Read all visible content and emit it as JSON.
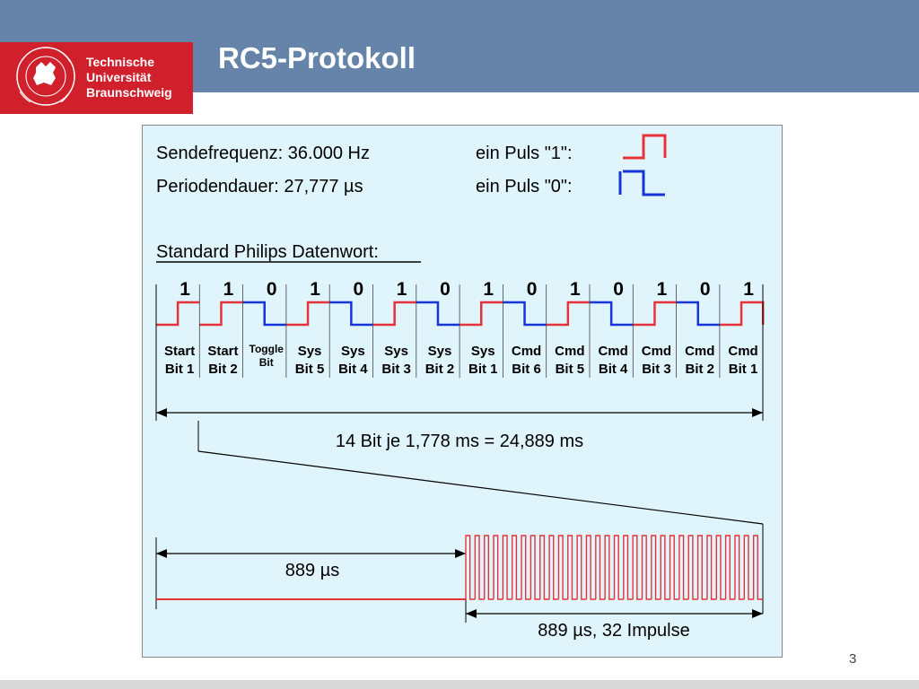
{
  "slide": {
    "title": "RC5-Protokoll",
    "page_number": "3"
  },
  "logo": {
    "line1": "Technische",
    "line2": "Universität",
    "line3": "Braunschweig",
    "seal_text": "CAROLO-WILHELMINA BRAUNSCHWEIG"
  },
  "diagram": {
    "send_frequency": "Sendefrequenz: 36.000 Hz",
    "period": "Periodendauer: 27,777 µs",
    "pulse_one_label": "ein Puls \"1\":",
    "pulse_zero_label": "ein Puls \"0\":",
    "dataword_heading": "Standard Philips Datenwort:",
    "bits": [
      "1",
      "1",
      "0",
      "1",
      "0",
      "1",
      "0",
      "1",
      "0",
      "1",
      "0",
      "1",
      "0",
      "1"
    ],
    "bit_labels": [
      [
        "Start",
        "Bit 1"
      ],
      [
        "Start",
        "Bit 2"
      ],
      [
        "Toggle",
        "Bit"
      ],
      [
        "Sys",
        "Bit 5"
      ],
      [
        "Sys",
        "Bit 4"
      ],
      [
        "Sys",
        "Bit 3"
      ],
      [
        "Sys",
        "Bit 2"
      ],
      [
        "Sys",
        "Bit 1"
      ],
      [
        "Cmd",
        "Bit 6"
      ],
      [
        "Cmd",
        "Bit 5"
      ],
      [
        "Cmd",
        "Bit 4"
      ],
      [
        "Cmd",
        "Bit 3"
      ],
      [
        "Cmd",
        "Bit 2"
      ],
      [
        "Cmd",
        "Bit 1"
      ]
    ],
    "total_label": "14 Bit je 1,778 ms = 24,889 ms",
    "half_bit_label": "889 µs",
    "burst_label": "889 µs, 32 Impulse",
    "burst_pulse_count": 32,
    "colors": {
      "background": "#dff5fb",
      "one_color": "#e8323a",
      "zero_color": "#1535d8",
      "line_color": "#000000"
    }
  }
}
